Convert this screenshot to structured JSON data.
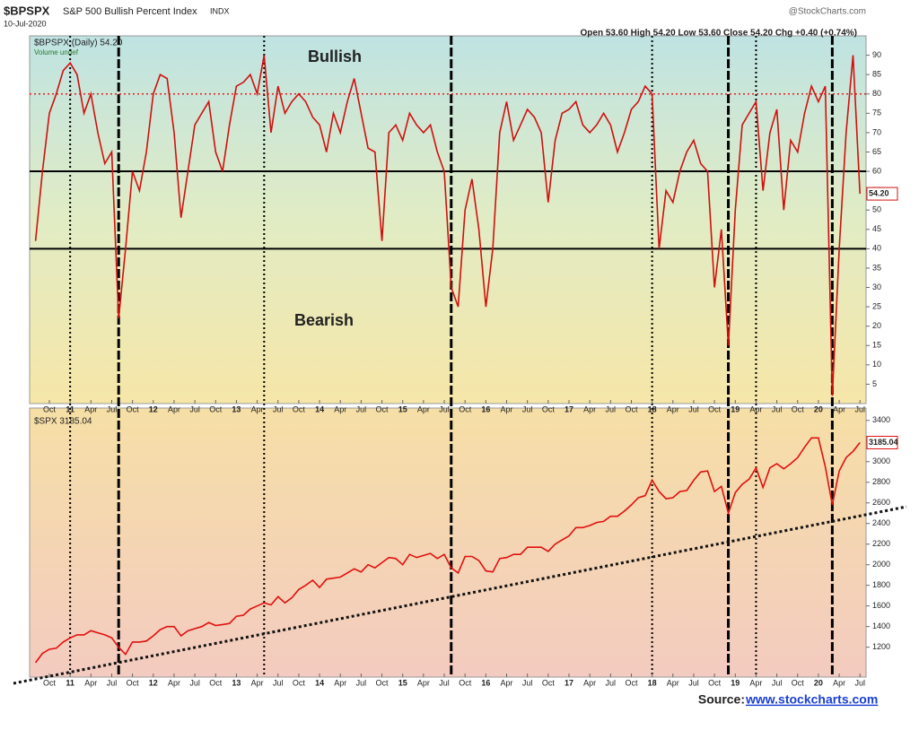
{
  "header": {
    "symbol": "$BPSPX",
    "name": "S&P 500 Bullish Percent Index",
    "exchange": "INDX",
    "date": "10-Jul-2020",
    "brand": "@StockCharts.com",
    "quote": "Open 53.60  High 54.20  Low 53.60  Close 54.20  Chg +0.40 (+0.74%)"
  },
  "source": {
    "label": "Source: ",
    "link": "www.stockcharts.com"
  },
  "chart_data": [
    {
      "type": "line",
      "legend": "$BPSPX (Daily) 54.20",
      "sublegend": "Volume undef",
      "annotations": [
        "Bullish",
        "Bearish"
      ],
      "last_label": "54.20",
      "x": [
        "2010-08",
        "2010-09",
        "2010-10",
        "2010-11",
        "2010-12",
        "2011-01",
        "2011-02",
        "2011-03",
        "2011-04",
        "2011-05",
        "2011-06",
        "2011-07",
        "2011-08",
        "2011-09",
        "2011-10",
        "2011-11",
        "2011-12",
        "2012-01",
        "2012-02",
        "2012-03",
        "2012-04",
        "2012-05",
        "2012-06",
        "2012-07",
        "2012-08",
        "2012-09",
        "2012-10",
        "2012-11",
        "2012-12",
        "2013-01",
        "2013-02",
        "2013-03",
        "2013-04",
        "2013-05",
        "2013-06",
        "2013-07",
        "2013-08",
        "2013-09",
        "2013-10",
        "2013-11",
        "2013-12",
        "2014-01",
        "2014-02",
        "2014-03",
        "2014-04",
        "2014-05",
        "2014-06",
        "2014-07",
        "2014-08",
        "2014-09",
        "2014-10",
        "2014-11",
        "2014-12",
        "2015-01",
        "2015-02",
        "2015-03",
        "2015-04",
        "2015-05",
        "2015-06",
        "2015-07",
        "2015-08",
        "2015-09",
        "2015-10",
        "2015-11",
        "2015-12",
        "2016-01",
        "2016-02",
        "2016-03",
        "2016-04",
        "2016-05",
        "2016-06",
        "2016-07",
        "2016-08",
        "2016-09",
        "2016-10",
        "2016-11",
        "2016-12",
        "2017-01",
        "2017-02",
        "2017-03",
        "2017-04",
        "2017-05",
        "2017-06",
        "2017-07",
        "2017-08",
        "2017-09",
        "2017-10",
        "2017-11",
        "2017-12",
        "2018-01",
        "2018-02",
        "2018-03",
        "2018-04",
        "2018-05",
        "2018-06",
        "2018-07",
        "2018-08",
        "2018-09",
        "2018-10",
        "2018-11",
        "2018-12",
        "2019-01",
        "2019-02",
        "2019-03",
        "2019-04",
        "2019-05",
        "2019-06",
        "2019-07",
        "2019-08",
        "2019-09",
        "2019-10",
        "2019-11",
        "2019-12",
        "2020-01",
        "2020-02",
        "2020-03",
        "2020-04",
        "2020-05",
        "2020-06",
        "2020-07"
      ],
      "series": [
        {
          "name": "$BPSPX",
          "color": "#d01010",
          "values": [
            42,
            60,
            75,
            80,
            86,
            88,
            85,
            75,
            80,
            70,
            62,
            65,
            22,
            40,
            60,
            55,
            65,
            80,
            85,
            84,
            70,
            48,
            60,
            72,
            75,
            78,
            65,
            60,
            72,
            82,
            83,
            85,
            80,
            90,
            70,
            82,
            75,
            78,
            80,
            78,
            74,
            72,
            65,
            75,
            70,
            78,
            84,
            75,
            66,
            65,
            42,
            70,
            72,
            68,
            75,
            72,
            70,
            72,
            65,
            60,
            30,
            25,
            50,
            58,
            45,
            25,
            40,
            70,
            78,
            68,
            72,
            76,
            74,
            70,
            52,
            68,
            75,
            76,
            78,
            72,
            70,
            72,
            75,
            72,
            65,
            70,
            76,
            78,
            82,
            80,
            40,
            55,
            52,
            60,
            65,
            68,
            62,
            60,
            30,
            45,
            15,
            50,
            72,
            75,
            78,
            55,
            70,
            76,
            50,
            68,
            65,
            75,
            82,
            78,
            82,
            2,
            40,
            70,
            90,
            54.2
          ]
        }
      ],
      "ylim": [
        0,
        95
      ],
      "yticks": [
        5,
        10,
        15,
        20,
        25,
        30,
        35,
        40,
        45,
        50,
        55,
        60,
        65,
        70,
        75,
        80,
        85,
        90
      ],
      "hlines": [
        {
          "value": 80,
          "color": "#e02020",
          "style": "dotted"
        },
        {
          "value": 60,
          "color": "#000000",
          "style": "solid"
        },
        {
          "value": 40,
          "color": "#000000",
          "style": "solid"
        }
      ],
      "vlines": [
        {
          "x": "2011-01",
          "style": "dotted"
        },
        {
          "x": "2011-08",
          "style": "dashed"
        },
        {
          "x": "2013-05",
          "style": "dotted"
        },
        {
          "x": "2015-08",
          "style": "dashed"
        },
        {
          "x": "2018-01",
          "style": "dotted"
        },
        {
          "x": "2018-12",
          "style": "dashed"
        },
        {
          "x": "2019-04",
          "style": "dotted"
        },
        {
          "x": "2020-03",
          "style": "dashed"
        }
      ],
      "xticks": [
        {
          "value": "2010-10",
          "label": "Oct"
        },
        {
          "value": "2011-01",
          "label": "11"
        },
        {
          "value": "2011-04",
          "label": "Apr"
        },
        {
          "value": "2011-07",
          "label": "Jul"
        },
        {
          "value": "2011-10",
          "label": "Oct"
        },
        {
          "value": "2012-01",
          "label": "12"
        },
        {
          "value": "2012-04",
          "label": "Apr"
        },
        {
          "value": "2012-07",
          "label": "Jul"
        },
        {
          "value": "2012-10",
          "label": "Oct"
        },
        {
          "value": "2013-01",
          "label": "13"
        },
        {
          "value": "2013-04",
          "label": "Apr"
        },
        {
          "value": "2013-07",
          "label": "Jul"
        },
        {
          "value": "2013-10",
          "label": "Oct"
        },
        {
          "value": "2014-01",
          "label": "14"
        },
        {
          "value": "2014-04",
          "label": "Apr"
        },
        {
          "value": "2014-07",
          "label": "Jul"
        },
        {
          "value": "2014-10",
          "label": "Oct"
        },
        {
          "value": "2015-01",
          "label": "15"
        },
        {
          "value": "2015-04",
          "label": "Apr"
        },
        {
          "value": "2015-07",
          "label": "Jul"
        },
        {
          "value": "2015-10",
          "label": "Oct"
        },
        {
          "value": "2016-01",
          "label": "16"
        },
        {
          "value": "2016-04",
          "label": "Apr"
        },
        {
          "value": "2016-07",
          "label": "Jul"
        },
        {
          "value": "2016-10",
          "label": "Oct"
        },
        {
          "value": "2017-01",
          "label": "17"
        },
        {
          "value": "2017-04",
          "label": "Apr"
        },
        {
          "value": "2017-07",
          "label": "Jul"
        },
        {
          "value": "2017-10",
          "label": "Oct"
        },
        {
          "value": "2018-01",
          "label": "18"
        },
        {
          "value": "2018-04",
          "label": "Apr"
        },
        {
          "value": "2018-07",
          "label": "Jul"
        },
        {
          "value": "2018-10",
          "label": "Oct"
        },
        {
          "value": "2019-01",
          "label": "19"
        },
        {
          "value": "2019-04",
          "label": "Apr"
        },
        {
          "value": "2019-07",
          "label": "Jul"
        },
        {
          "value": "2019-10",
          "label": "Oct"
        },
        {
          "value": "2020-01",
          "label": "20"
        },
        {
          "value": "2020-04",
          "label": "Apr"
        },
        {
          "value": "2020-07",
          "label": "Jul"
        }
      ]
    },
    {
      "type": "line",
      "legend": "$SPX 3185.04",
      "last_label": "3185.04",
      "series": [
        {
          "name": "$SPX",
          "color": "#e01010",
          "values": [
            1050,
            1140,
            1180,
            1190,
            1250,
            1290,
            1320,
            1320,
            1360,
            1340,
            1320,
            1290,
            1200,
            1130,
            1250,
            1250,
            1260,
            1310,
            1370,
            1400,
            1400,
            1310,
            1360,
            1380,
            1400,
            1440,
            1410,
            1420,
            1430,
            1500,
            1510,
            1570,
            1600,
            1630,
            1610,
            1690,
            1630,
            1680,
            1760,
            1800,
            1850,
            1780,
            1860,
            1870,
            1880,
            1920,
            1960,
            1930,
            2000,
            1970,
            2020,
            2070,
            2060,
            2000,
            2100,
            2070,
            2090,
            2110,
            2060,
            2100,
            1970,
            1920,
            2080,
            2080,
            2040,
            1940,
            1930,
            2060,
            2070,
            2100,
            2100,
            2170,
            2170,
            2170,
            2130,
            2200,
            2240,
            2280,
            2360,
            2360,
            2380,
            2410,
            2420,
            2470,
            2470,
            2520,
            2580,
            2650,
            2670,
            2820,
            2710,
            2640,
            2650,
            2710,
            2720,
            2820,
            2900,
            2910,
            2710,
            2760,
            2500,
            2700,
            2780,
            2830,
            2940,
            2750,
            2940,
            2980,
            2930,
            2980,
            3040,
            3140,
            3230,
            3230,
            2950,
            2580,
            2910,
            3040,
            3100,
            3185.04
          ]
        }
      ],
      "ylim": [
        910,
        3520
      ],
      "yticks": [
        1200,
        1400,
        1600,
        1800,
        2000,
        2200,
        2400,
        2600,
        2800,
        3000,
        3200,
        3400
      ]
    }
  ]
}
